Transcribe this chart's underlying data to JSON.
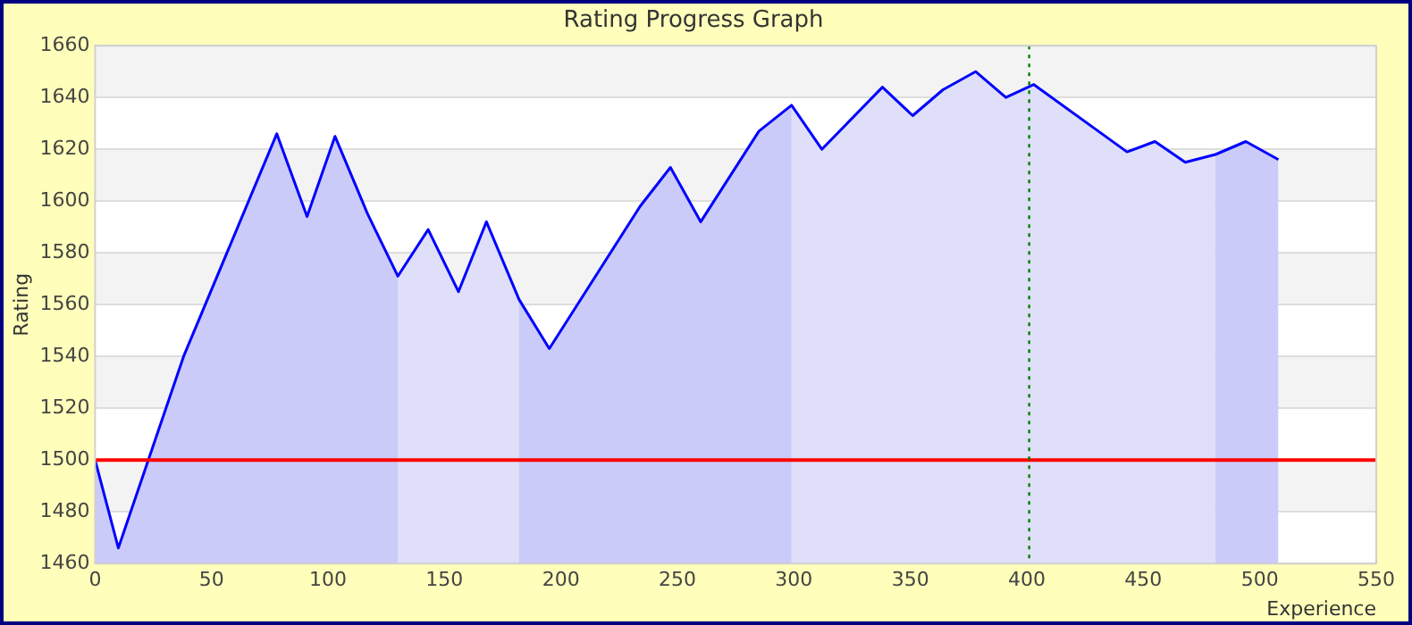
{
  "chart_data": {
    "type": "area",
    "title": "Rating Progress Graph",
    "xlabel": "Experience",
    "ylabel": "Rating",
    "x": [
      0,
      10,
      38,
      78,
      91,
      103,
      117,
      130,
      143,
      156,
      168,
      182,
      195,
      234,
      247,
      260,
      285,
      299,
      312,
      338,
      351,
      364,
      378,
      391,
      403,
      443,
      455,
      468,
      481,
      494,
      508
    ],
    "series": [
      {
        "color": "#0000ff",
        "values": [
          1500,
          1466,
          1540,
          1626,
          1594,
          1625,
          1595,
          1571,
          1589,
          1565,
          1592,
          1562,
          1543,
          1598,
          1613,
          1592,
          1627,
          1637,
          1620,
          1644,
          1633,
          1643,
          1650,
          1640,
          1645,
          1619,
          1623,
          1615,
          1618,
          1623,
          1616
        ]
      }
    ],
    "xlim": [
      0,
      550
    ],
    "xticks": [
      0,
      50,
      100,
      150,
      200,
      250,
      300,
      350,
      400,
      450,
      500,
      550
    ],
    "ylim": [
      1460,
      1660
    ],
    "yticks": [
      1460,
      1480,
      1500,
      1520,
      1540,
      1560,
      1580,
      1600,
      1620,
      1640,
      1660
    ],
    "grid": "y",
    "legend": false,
    "bands": [
      {
        "axis": "x",
        "from": 0,
        "to": 130,
        "color": "#e3e3f9"
      },
      {
        "axis": "x",
        "from": 130,
        "to": 182,
        "color": "#f9f9f9"
      },
      {
        "axis": "x",
        "from": 182,
        "to": 299,
        "color": "#e3e3f9"
      },
      {
        "axis": "x",
        "from": 299,
        "to": 481,
        "color": "#f9f9f9"
      },
      {
        "axis": "x",
        "from": 481,
        "to": 508,
        "color": "#e3e3f9"
      }
    ],
    "ref_lines": [
      {
        "axis": "y",
        "value": 1500,
        "color": "#ff0000",
        "line_style": "solid"
      },
      {
        "axis": "x",
        "value": 401,
        "color": "#008000",
        "line_style": "dotted"
      }
    ]
  }
}
